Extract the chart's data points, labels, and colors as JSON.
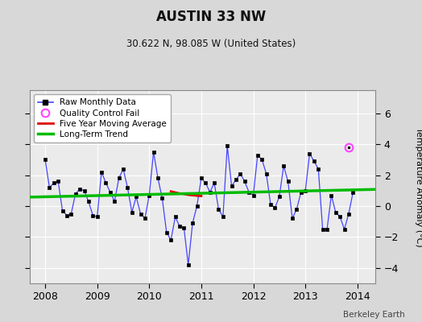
{
  "title": "AUSTIN 33 NW",
  "subtitle": "30.622 N, 98.085 W (United States)",
  "ylabel": "Temperature Anomaly (°C)",
  "credit": "Berkeley Earth",
  "xlim": [
    2007.7,
    2014.35
  ],
  "ylim": [
    -5.0,
    7.5
  ],
  "yticks": [
    -4,
    -2,
    0,
    2,
    4,
    6
  ],
  "xticks": [
    2008,
    2009,
    2010,
    2011,
    2012,
    2013,
    2014
  ],
  "bg_color": "#d8d8d8",
  "plot_bg_color": "#ebebeb",
  "raw_x": [
    2008.0,
    2008.083,
    2008.167,
    2008.25,
    2008.333,
    2008.417,
    2008.5,
    2008.583,
    2008.667,
    2008.75,
    2008.833,
    2008.917,
    2009.0,
    2009.083,
    2009.167,
    2009.25,
    2009.333,
    2009.417,
    2009.5,
    2009.583,
    2009.667,
    2009.75,
    2009.833,
    2009.917,
    2010.0,
    2010.083,
    2010.167,
    2010.25,
    2010.333,
    2010.417,
    2010.5,
    2010.583,
    2010.667,
    2010.75,
    2010.833,
    2010.917,
    2011.0,
    2011.083,
    2011.167,
    2011.25,
    2011.333,
    2011.417,
    2011.5,
    2011.583,
    2011.667,
    2011.75,
    2011.833,
    2011.917,
    2012.0,
    2012.083,
    2012.167,
    2012.25,
    2012.333,
    2012.417,
    2012.5,
    2012.583,
    2012.667,
    2012.75,
    2012.833,
    2012.917,
    2013.0,
    2013.083,
    2013.167,
    2013.25,
    2013.333,
    2013.417,
    2013.5,
    2013.583,
    2013.667,
    2013.75,
    2013.833,
    2013.917
  ],
  "raw_y": [
    3.0,
    1.2,
    1.5,
    1.6,
    -0.3,
    -0.6,
    -0.5,
    0.8,
    1.1,
    1.0,
    0.3,
    -0.6,
    -0.7,
    2.2,
    1.5,
    0.9,
    0.3,
    1.8,
    2.4,
    1.2,
    -0.4,
    0.6,
    -0.5,
    -0.8,
    0.7,
    3.5,
    1.8,
    0.5,
    -1.7,
    -2.2,
    -0.7,
    -1.3,
    -1.4,
    -3.8,
    -1.1,
    0.0,
    1.8,
    1.5,
    0.9,
    1.5,
    -0.2,
    -0.7,
    3.9,
    1.3,
    1.7,
    2.1,
    1.6,
    0.9,
    0.7,
    3.3,
    3.0,
    2.1,
    0.1,
    -0.1,
    0.6,
    2.6,
    1.6,
    -0.8,
    -0.2,
    0.9,
    1.0,
    3.4,
    2.9,
    2.4,
    -1.5,
    -1.5,
    0.7,
    -0.4,
    -0.7,
    -1.5,
    -0.5,
    0.9
  ],
  "five_yr_ma_x": [
    2010.417,
    2010.5,
    2010.583,
    2010.667,
    2010.75,
    2010.833,
    2010.917,
    2011.0
  ],
  "five_yr_ma_y": [
    0.95,
    0.88,
    0.82,
    0.78,
    0.73,
    0.7,
    0.67,
    0.65
  ],
  "trend_x": [
    2007.7,
    2014.35
  ],
  "trend_y": [
    0.58,
    1.08
  ],
  "qc_fail_x": [
    2013.833
  ],
  "qc_fail_y": [
    3.8
  ],
  "raw_line_color": "#4444ff",
  "raw_marker_color": "#000000",
  "five_yr_color": "#dd0000",
  "trend_color": "#00bb00",
  "qc_color": "#ff44ff"
}
